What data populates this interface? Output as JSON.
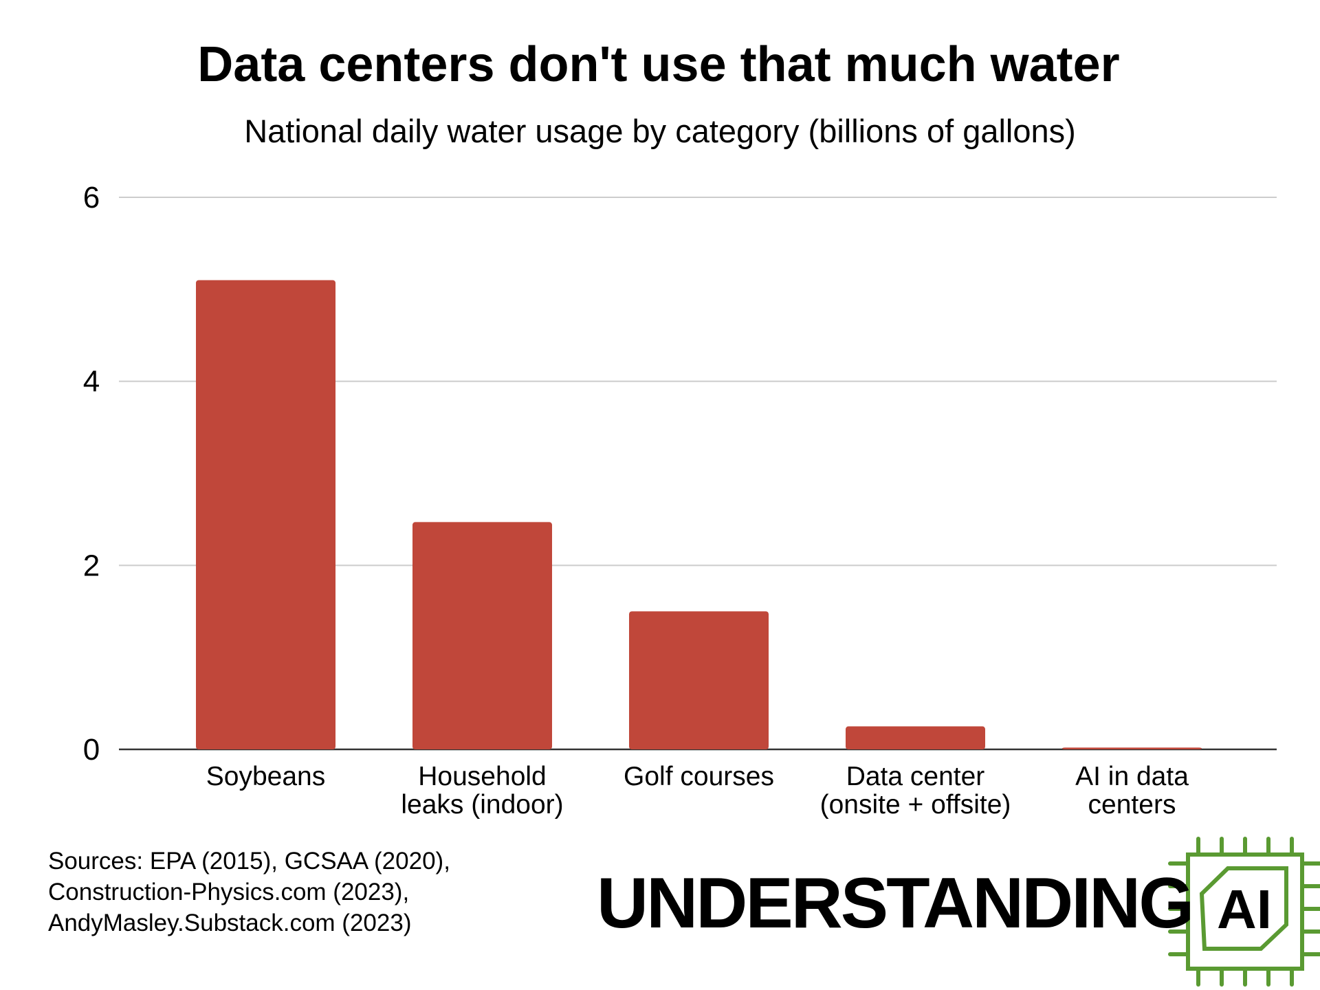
{
  "chart_data": {
    "type": "bar",
    "title": "Data centers don't use that much water",
    "subtitle": "National daily water usage by category (billions of gallons)",
    "categories": [
      [
        "Soybeans"
      ],
      [
        "Household",
        "leaks (indoor)"
      ],
      [
        "Golf courses"
      ],
      [
        "Data center",
        "(onsite + offsite)"
      ],
      [
        "AI in data",
        "centers"
      ]
    ],
    "values": [
      5.1,
      2.47,
      1.5,
      0.25,
      0.02
    ],
    "ylim": [
      0,
      6
    ],
    "yticks": [
      "0",
      "2",
      "4",
      "6"
    ],
    "grid": true,
    "bar_color": "#c0473a"
  },
  "sources": [
    "Sources: EPA (2015), GCSAA (2020),",
    "Construction-Physics.com (2023),",
    "AndyMasley.Substack.com (2023)"
  ],
  "logo": {
    "text": "UNDERSTANDING",
    "badge": "AI",
    "color": "#5a9a32"
  }
}
